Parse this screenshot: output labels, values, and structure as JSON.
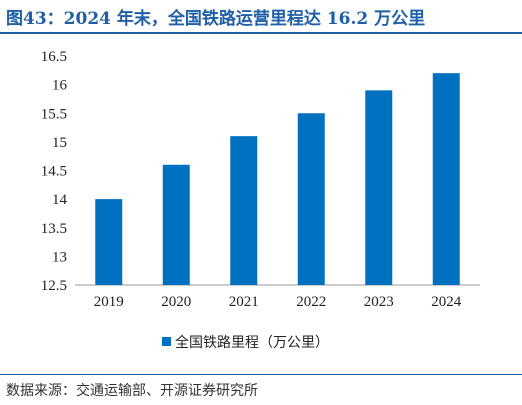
{
  "figure_title": "图43：2024 年末，全国铁路运营里程达 16.2 万公里",
  "source_text": "数据来源：交通运输部、开源证券研究所",
  "chart_data": {
    "type": "bar",
    "categories": [
      "2019",
      "2020",
      "2021",
      "2022",
      "2023",
      "2024"
    ],
    "series": [
      {
        "name": "全国铁路里程（万公里）",
        "values": [
          14.0,
          14.6,
          15.1,
          15.5,
          15.9,
          16.2
        ],
        "color": "#0070c0"
      }
    ],
    "title": "",
    "xlabel": "",
    "ylabel": "",
    "ylim": [
      12.5,
      16.5
    ],
    "yticks": [
      "12.5",
      "13",
      "13.5",
      "14",
      "14.5",
      "15",
      "15.5",
      "16",
      "16.5"
    ],
    "grid": false,
    "legend_position": "bottom"
  }
}
